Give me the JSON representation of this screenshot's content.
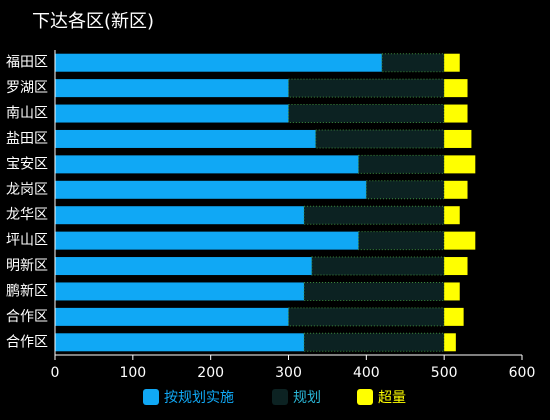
{
  "chart_data": {
    "type": "stacked-hbar",
    "title": "下达各区(新区)",
    "categories": [
      "福田区",
      "罗湖区",
      "南山区",
      "盐田区",
      "宝安区",
      "龙岗区",
      "龙华区",
      "坪山区",
      "明新区",
      "鹏新区",
      "合作区",
      "合作区"
    ],
    "series": [
      {
        "name": "按规划实施",
        "color": "#10a8f5",
        "values": [
          420,
          300,
          300,
          335,
          390,
          400,
          320,
          390,
          330,
          320,
          300,
          320
        ]
      },
      {
        "name": "规划",
        "color": "#0c2222",
        "values": [
          80,
          200,
          200,
          165,
          110,
          100,
          180,
          110,
          170,
          180,
          200,
          180
        ]
      },
      {
        "name": "超量",
        "color": "#ffff00",
        "values": [
          20,
          30,
          30,
          35,
          40,
          30,
          20,
          40,
          30,
          20,
          25,
          15
        ]
      }
    ],
    "xlim": [
      0,
      600
    ],
    "xticks": [
      0,
      100,
      200,
      300,
      400,
      500,
      600
    ]
  }
}
